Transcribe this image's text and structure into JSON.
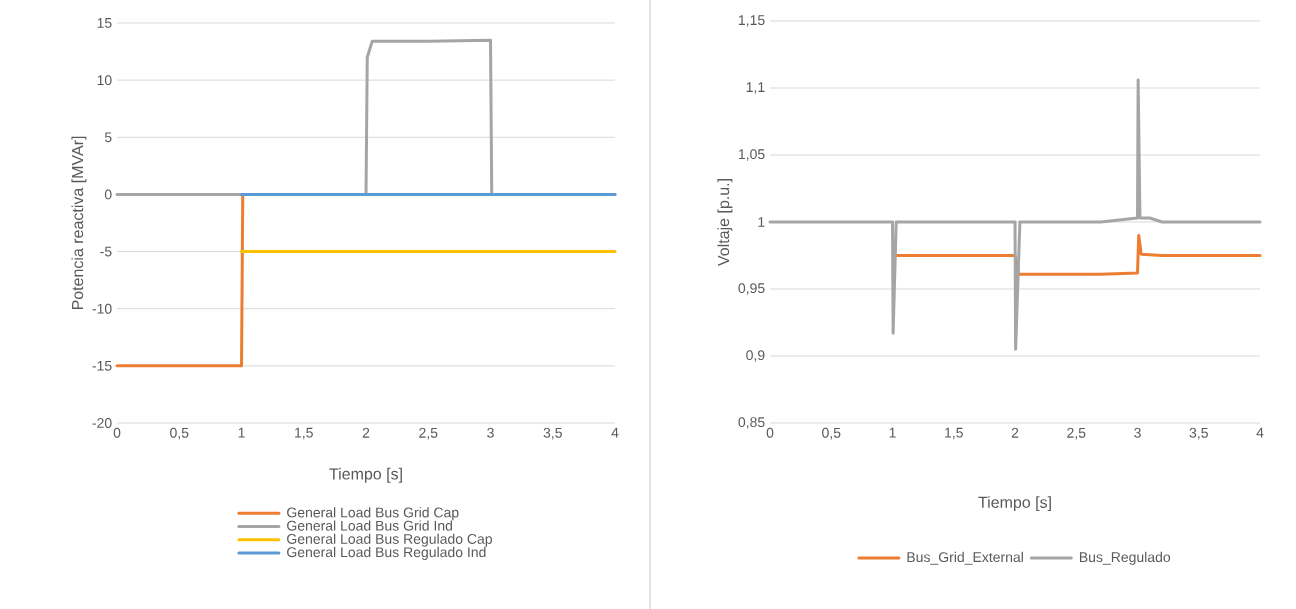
{
  "chart_data": [
    {
      "type": "line",
      "xlabel": "Tiempo [s]",
      "ylabel": "Potencia reactiva [MVAr]",
      "xlim": [
        0,
        4
      ],
      "ylim": [
        -20,
        15
      ],
      "xticks": [
        0,
        {
          "value": 0.5,
          "label": "0,5"
        },
        1,
        {
          "value": 1.5,
          "label": "1,5"
        },
        2,
        {
          "value": 2.5,
          "label": "2,5"
        },
        3,
        {
          "value": 3.5,
          "label": "3,5"
        },
        4
      ],
      "yticks": [
        -20,
        -15,
        -10,
        -5,
        0,
        5,
        10,
        15
      ],
      "grid": "y",
      "legend": "bottom",
      "marker": "none",
      "line_style": "solid",
      "series": [
        {
          "name": "General Load Bus Grid Cap",
          "color": "#ed7d31",
          "x": [
            0,
            1,
            1.01
          ],
          "values": [
            -15,
            -15,
            0
          ]
        },
        {
          "name": "General Load Bus Grid Ind",
          "color": "#a5a5a5",
          "x": [
            0,
            1,
            2,
            2.01,
            2.05,
            2.5,
            3,
            3.01,
            4
          ],
          "values": [
            0,
            0,
            0,
            12,
            13.4,
            13.4,
            13.5,
            0,
            0
          ]
        },
        {
          "name": "General Load Bus Regulado Cap",
          "color": "#ffc000",
          "x": [
            1,
            4
          ],
          "values": [
            -5,
            -5
          ]
        },
        {
          "name": "General Load Bus Regulado Ind",
          "color": "#5b9bd5",
          "x": [
            1,
            4
          ],
          "values": [
            0,
            0
          ]
        }
      ]
    },
    {
      "type": "line",
      "xlabel": "Tiempo [s]",
      "ylabel": "Voltaje [p.u.]",
      "xlim": [
        0,
        4
      ],
      "ylim": [
        0.85,
        1.15
      ],
      "xticks": [
        0,
        {
          "value": 0.5,
          "label": "0,5"
        },
        1,
        {
          "value": 1.5,
          "label": "1,5"
        },
        2,
        {
          "value": 2.5,
          "label": "2,5"
        },
        3,
        {
          "value": 3.5,
          "label": "3,5"
        },
        4
      ],
      "yticks": [
        {
          "value": 0.85,
          "label": "0,85"
        },
        {
          "value": 0.9,
          "label": "0,9"
        },
        {
          "value": 0.95,
          "label": "0,95"
        },
        1,
        {
          "value": 1.05,
          "label": "1,05"
        },
        {
          "value": 1.1,
          "label": "1,1"
        },
        {
          "value": 1.15,
          "label": "1,15"
        }
      ],
      "grid": "y",
      "legend": "bottom",
      "marker": "none",
      "line_style": "solid",
      "series": [
        {
          "name": "Bus_Grid_External",
          "color": "#ed7d31",
          "x": [
            1.02,
            2,
            2.03,
            2.7,
            3,
            3.01,
            3.03,
            3.2,
            4
          ],
          "values": [
            0.975,
            0.975,
            0.961,
            0.961,
            0.962,
            0.99,
            0.976,
            0.975,
            0.975
          ]
        },
        {
          "name": "Bus_Regulado",
          "color": "#a5a5a5",
          "x": [
            0,
            1,
            1.005,
            1.03,
            2,
            2.005,
            2.04,
            2.7,
            3,
            3.005,
            3.02,
            3.1,
            3.2,
            4
          ],
          "values": [
            1,
            1,
            0.917,
            1,
            1,
            0.905,
            1,
            1,
            1.003,
            1.106,
            1.003,
            1.003,
            1,
            1
          ]
        }
      ]
    }
  ]
}
